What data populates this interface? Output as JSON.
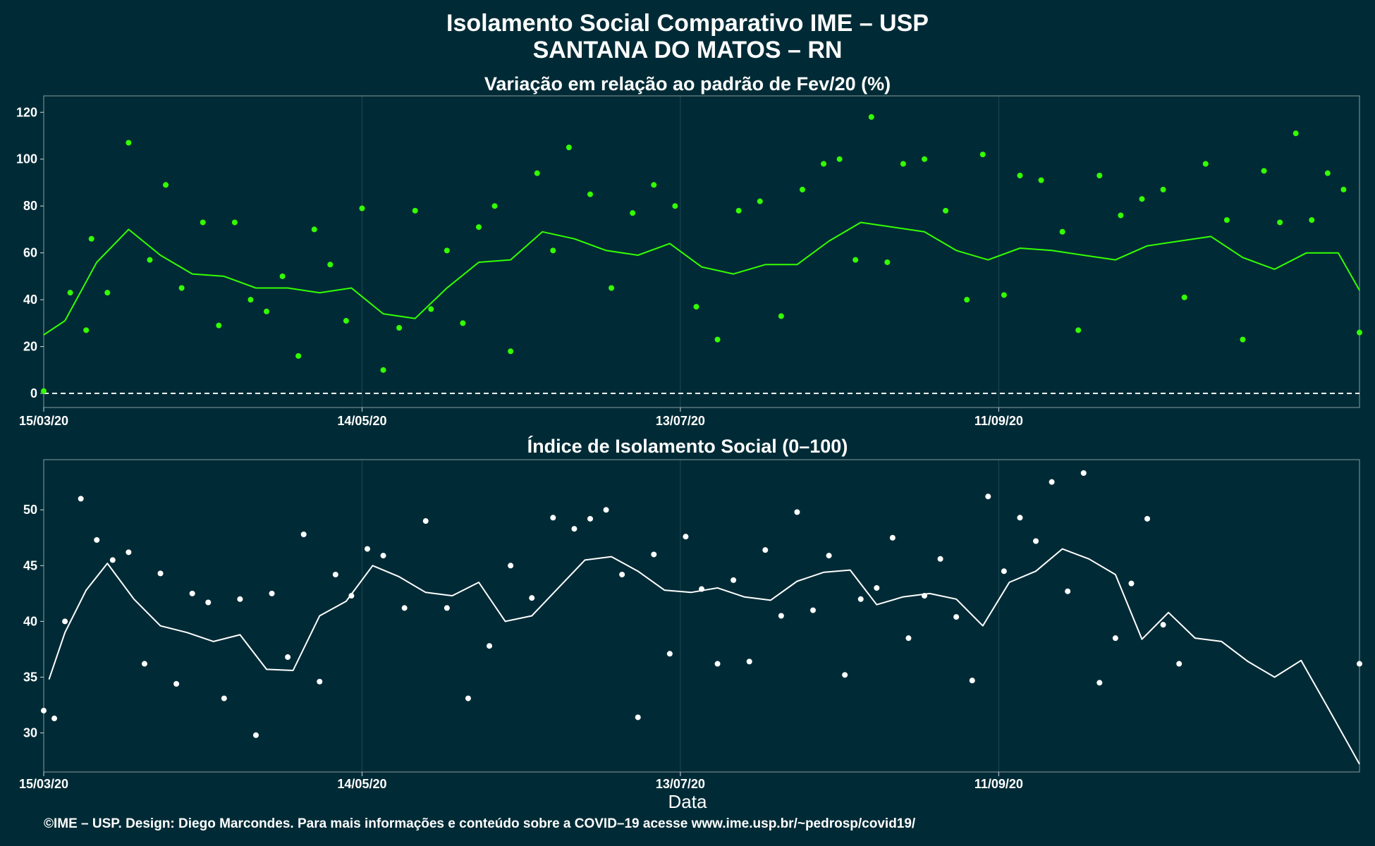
{
  "title_line1": "Isolamento Social Comparativo IME – USP",
  "title_line2": "SANTANA DO MATOS – RN",
  "x_axis_label": "Data",
  "footer": "©IME – USP. Design: Diego Marcondes. Para mais informações e conteúdo sobre a COVID–19 acesse www.ime.usp.br/~pedrosp/covid19/",
  "colors": {
    "background": "#002b36",
    "top_series": "#33ff00",
    "bottom_series": "#ffffff",
    "grid": "#23464f"
  },
  "chart_data": [
    {
      "type": "scatter",
      "title": "Variação em relação ao padrão de Fev/20 (%)",
      "xlabel": "",
      "ylabel": "",
      "x_start_date": "15/03/20",
      "x_end_date": "18/11/20",
      "x_ticks": [
        "15/03/20",
        "14/05/20",
        "13/07/20",
        "11/09/20"
      ],
      "y_ticks": [
        0,
        20,
        40,
        60,
        80,
        100,
        120
      ],
      "ylim": [
        -6,
        127
      ],
      "reference_line": 0,
      "points": [
        {
          "date": "15/03/20",
          "value": 1
        },
        {
          "date": "20/03/20",
          "value": 43
        },
        {
          "date": "23/03/20",
          "value": 27
        },
        {
          "date": "24/03/20",
          "value": 66
        },
        {
          "date": "27/03/20",
          "value": 43
        },
        {
          "date": "31/03/20",
          "value": 107
        },
        {
          "date": "04/04/20",
          "value": 57
        },
        {
          "date": "07/04/20",
          "value": 89
        },
        {
          "date": "10/04/20",
          "value": 45
        },
        {
          "date": "14/04/20",
          "value": 73
        },
        {
          "date": "17/04/20",
          "value": 29
        },
        {
          "date": "20/04/20",
          "value": 73
        },
        {
          "date": "23/04/20",
          "value": 40
        },
        {
          "date": "26/04/20",
          "value": 35
        },
        {
          "date": "29/04/20",
          "value": 50
        },
        {
          "date": "02/05/20",
          "value": 16
        },
        {
          "date": "05/05/20",
          "value": 70
        },
        {
          "date": "08/05/20",
          "value": 55
        },
        {
          "date": "11/05/20",
          "value": 31
        },
        {
          "date": "14/05/20",
          "value": 79
        },
        {
          "date": "18/05/20",
          "value": 10
        },
        {
          "date": "21/05/20",
          "value": 28
        },
        {
          "date": "24/05/20",
          "value": 78
        },
        {
          "date": "27/05/20",
          "value": 36
        },
        {
          "date": "30/05/20",
          "value": 61
        },
        {
          "date": "02/06/20",
          "value": 30
        },
        {
          "date": "05/06/20",
          "value": 71
        },
        {
          "date": "08/06/20",
          "value": 80
        },
        {
          "date": "11/06/20",
          "value": 18
        },
        {
          "date": "16/06/20",
          "value": 94
        },
        {
          "date": "19/06/20",
          "value": 61
        },
        {
          "date": "22/06/20",
          "value": 105
        },
        {
          "date": "26/06/20",
          "value": 85
        },
        {
          "date": "30/06/20",
          "value": 45
        },
        {
          "date": "04/07/20",
          "value": 77
        },
        {
          "date": "08/07/20",
          "value": 89
        },
        {
          "date": "12/07/20",
          "value": 80
        },
        {
          "date": "16/07/20",
          "value": 37
        },
        {
          "date": "20/07/20",
          "value": 23
        },
        {
          "date": "24/07/20",
          "value": 78
        },
        {
          "date": "28/07/20",
          "value": 82
        },
        {
          "date": "01/08/20",
          "value": 33
        },
        {
          "date": "05/08/20",
          "value": 87
        },
        {
          "date": "09/08/20",
          "value": 98
        },
        {
          "date": "12/08/20",
          "value": 100
        },
        {
          "date": "15/08/20",
          "value": 57
        },
        {
          "date": "18/08/20",
          "value": 118
        },
        {
          "date": "21/08/20",
          "value": 56
        },
        {
          "date": "24/08/20",
          "value": 98
        },
        {
          "date": "28/08/20",
          "value": 100
        },
        {
          "date": "01/09/20",
          "value": 78
        },
        {
          "date": "05/09/20",
          "value": 40
        },
        {
          "date": "08/09/20",
          "value": 102
        },
        {
          "date": "12/09/20",
          "value": 42
        },
        {
          "date": "15/09/20",
          "value": 93
        },
        {
          "date": "19/09/20",
          "value": 91
        },
        {
          "date": "23/09/20",
          "value": 69
        },
        {
          "date": "26/09/20",
          "value": 27
        },
        {
          "date": "30/09/20",
          "value": 93
        },
        {
          "date": "04/10/20",
          "value": 76
        },
        {
          "date": "08/10/20",
          "value": 83
        },
        {
          "date": "12/10/20",
          "value": 87
        },
        {
          "date": "16/10/20",
          "value": 41
        },
        {
          "date": "20/10/20",
          "value": 98
        },
        {
          "date": "24/10/20",
          "value": 74
        },
        {
          "date": "27/10/20",
          "value": 23
        },
        {
          "date": "31/10/20",
          "value": 95
        },
        {
          "date": "03/11/20",
          "value": 73
        },
        {
          "date": "06/11/20",
          "value": 111
        },
        {
          "date": "09/11/20",
          "value": 74
        },
        {
          "date": "12/11/20",
          "value": 94
        },
        {
          "date": "15/11/20",
          "value": 87
        },
        {
          "date": "18/11/20",
          "value": 26
        }
      ],
      "moving_average": [
        {
          "date": "15/03/20",
          "value": 25
        },
        {
          "date": "19/03/20",
          "value": 31
        },
        {
          "date": "25/03/20",
          "value": 56
        },
        {
          "date": "31/03/20",
          "value": 70
        },
        {
          "date": "06/04/20",
          "value": 59
        },
        {
          "date": "12/04/20",
          "value": 51
        },
        {
          "date": "18/04/20",
          "value": 50
        },
        {
          "date": "24/04/20",
          "value": 45
        },
        {
          "date": "30/04/20",
          "value": 45
        },
        {
          "date": "06/05/20",
          "value": 43
        },
        {
          "date": "12/05/20",
          "value": 45
        },
        {
          "date": "18/05/20",
          "value": 34
        },
        {
          "date": "24/05/20",
          "value": 32
        },
        {
          "date": "30/05/20",
          "value": 45
        },
        {
          "date": "05/06/20",
          "value": 56
        },
        {
          "date": "11/06/20",
          "value": 57
        },
        {
          "date": "17/06/20",
          "value": 69
        },
        {
          "date": "23/06/20",
          "value": 66
        },
        {
          "date": "29/06/20",
          "value": 61
        },
        {
          "date": "05/07/20",
          "value": 59
        },
        {
          "date": "11/07/20",
          "value": 64
        },
        {
          "date": "17/07/20",
          "value": 54
        },
        {
          "date": "23/07/20",
          "value": 51
        },
        {
          "date": "29/07/20",
          "value": 55
        },
        {
          "date": "04/08/20",
          "value": 55
        },
        {
          "date": "10/08/20",
          "value": 65
        },
        {
          "date": "16/08/20",
          "value": 73
        },
        {
          "date": "22/08/20",
          "value": 71
        },
        {
          "date": "28/08/20",
          "value": 69
        },
        {
          "date": "03/09/20",
          "value": 61
        },
        {
          "date": "09/09/20",
          "value": 57
        },
        {
          "date": "15/09/20",
          "value": 62
        },
        {
          "date": "21/09/20",
          "value": 61
        },
        {
          "date": "27/09/20",
          "value": 59
        },
        {
          "date": "03/10/20",
          "value": 57
        },
        {
          "date": "09/10/20",
          "value": 63
        },
        {
          "date": "15/10/20",
          "value": 65
        },
        {
          "date": "21/10/20",
          "value": 67
        },
        {
          "date": "27/10/20",
          "value": 58
        },
        {
          "date": "02/11/20",
          "value": 53
        },
        {
          "date": "08/11/20",
          "value": 60
        },
        {
          "date": "14/11/20",
          "value": 60
        },
        {
          "date": "18/11/20",
          "value": 44
        }
      ]
    },
    {
      "type": "scatter",
      "title": "Índice de Isolamento Social (0–100)",
      "xlabel": "Data",
      "ylabel": "",
      "x_start_date": "15/03/20",
      "x_end_date": "18/11/20",
      "x_ticks": [
        "15/03/20",
        "14/05/20",
        "13/07/20",
        "11/09/20"
      ],
      "y_ticks": [
        30,
        35,
        40,
        45,
        50
      ],
      "ylim": [
        26.5,
        54.5
      ],
      "points": [
        {
          "date": "15/03/20",
          "value": 32
        },
        {
          "date": "17/03/20",
          "value": 31.3
        },
        {
          "date": "19/03/20",
          "value": 40
        },
        {
          "date": "22/03/20",
          "value": 51
        },
        {
          "date": "25/03/20",
          "value": 47.3
        },
        {
          "date": "28/03/20",
          "value": 45.5
        },
        {
          "date": "31/03/20",
          "value": 46.2
        },
        {
          "date": "03/04/20",
          "value": 36.2
        },
        {
          "date": "06/04/20",
          "value": 44.3
        },
        {
          "date": "09/04/20",
          "value": 34.4
        },
        {
          "date": "12/04/20",
          "value": 42.5
        },
        {
          "date": "15/04/20",
          "value": 41.7
        },
        {
          "date": "18/04/20",
          "value": 33.1
        },
        {
          "date": "21/04/20",
          "value": 42
        },
        {
          "date": "24/04/20",
          "value": 29.8
        },
        {
          "date": "27/04/20",
          "value": 42.5
        },
        {
          "date": "30/04/20",
          "value": 36.8
        },
        {
          "date": "03/05/20",
          "value": 47.8
        },
        {
          "date": "06/05/20",
          "value": 34.6
        },
        {
          "date": "09/05/20",
          "value": 44.2
        },
        {
          "date": "12/05/20",
          "value": 42.3
        },
        {
          "date": "15/05/20",
          "value": 46.5
        },
        {
          "date": "18/05/20",
          "value": 45.9
        },
        {
          "date": "22/05/20",
          "value": 41.2
        },
        {
          "date": "26/05/20",
          "value": 49
        },
        {
          "date": "30/05/20",
          "value": 41.2
        },
        {
          "date": "03/06/20",
          "value": 33.1
        },
        {
          "date": "07/06/20",
          "value": 37.8
        },
        {
          "date": "11/06/20",
          "value": 45
        },
        {
          "date": "15/06/20",
          "value": 42.1
        },
        {
          "date": "19/06/20",
          "value": 49.3
        },
        {
          "date": "23/06/20",
          "value": 48.3
        },
        {
          "date": "26/06/20",
          "value": 49.2
        },
        {
          "date": "29/06/20",
          "value": 50
        },
        {
          "date": "02/07/20",
          "value": 44.2
        },
        {
          "date": "05/07/20",
          "value": 31.4
        },
        {
          "date": "08/07/20",
          "value": 46
        },
        {
          "date": "11/07/20",
          "value": 37.1
        },
        {
          "date": "14/07/20",
          "value": 47.6
        },
        {
          "date": "17/07/20",
          "value": 42.9
        },
        {
          "date": "20/07/20",
          "value": 36.2
        },
        {
          "date": "23/07/20",
          "value": 43.7
        },
        {
          "date": "26/07/20",
          "value": 36.4
        },
        {
          "date": "29/07/20",
          "value": 46.4
        },
        {
          "date": "01/08/20",
          "value": 40.5
        },
        {
          "date": "04/08/20",
          "value": 49.8
        },
        {
          "date": "07/08/20",
          "value": 41
        },
        {
          "date": "10/08/20",
          "value": 45.9
        },
        {
          "date": "13/08/20",
          "value": 35.2
        },
        {
          "date": "16/08/20",
          "value": 42
        },
        {
          "date": "19/08/20",
          "value": 43
        },
        {
          "date": "22/08/20",
          "value": 47.5
        },
        {
          "date": "25/08/20",
          "value": 38.5
        },
        {
          "date": "28/08/20",
          "value": 42.3
        },
        {
          "date": "31/08/20",
          "value": 45.6
        },
        {
          "date": "03/09/20",
          "value": 40.4
        },
        {
          "date": "06/09/20",
          "value": 34.7
        },
        {
          "date": "09/09/20",
          "value": 51.2
        },
        {
          "date": "12/09/20",
          "value": 44.5
        },
        {
          "date": "15/09/20",
          "value": 49.3
        },
        {
          "date": "18/09/20",
          "value": 47.2
        },
        {
          "date": "21/09/20",
          "value": 52.5
        },
        {
          "date": "24/09/20",
          "value": 42.7
        },
        {
          "date": "27/09/20",
          "value": 53.3
        },
        {
          "date": "30/09/20",
          "value": 34.5
        },
        {
          "date": "03/10/20",
          "value": 38.5
        },
        {
          "date": "06/10/20",
          "value": 43.4
        },
        {
          "date": "09/10/20",
          "value": 49.2
        },
        {
          "date": "12/10/20",
          "value": 39.7
        },
        {
          "date": "15/10/20",
          "value": 36.2
        },
        {
          "date": "18/11/20",
          "value": 36.2
        }
      ],
      "moving_average": [
        {
          "date": "16/03/20",
          "value": 34.8
        },
        {
          "date": "19/03/20",
          "value": 39
        },
        {
          "date": "23/03/20",
          "value": 42.8
        },
        {
          "date": "27/03/20",
          "value": 45.2
        },
        {
          "date": "01/04/20",
          "value": 42
        },
        {
          "date": "06/04/20",
          "value": 39.6
        },
        {
          "date": "11/04/20",
          "value": 39
        },
        {
          "date": "16/04/20",
          "value": 38.2
        },
        {
          "date": "21/04/20",
          "value": 38.8
        },
        {
          "date": "26/04/20",
          "value": 35.7
        },
        {
          "date": "01/05/20",
          "value": 35.6
        },
        {
          "date": "06/05/20",
          "value": 40.5
        },
        {
          "date": "11/05/20",
          "value": 41.8
        },
        {
          "date": "16/05/20",
          "value": 45
        },
        {
          "date": "21/05/20",
          "value": 44
        },
        {
          "date": "26/05/20",
          "value": 42.6
        },
        {
          "date": "31/05/20",
          "value": 42.3
        },
        {
          "date": "05/06/20",
          "value": 43.5
        },
        {
          "date": "10/06/20",
          "value": 40
        },
        {
          "date": "15/06/20",
          "value": 40.5
        },
        {
          "date": "20/06/20",
          "value": 43
        },
        {
          "date": "25/06/20",
          "value": 45.5
        },
        {
          "date": "30/06/20",
          "value": 45.8
        },
        {
          "date": "05/07/20",
          "value": 44.5
        },
        {
          "date": "10/07/20",
          "value": 42.8
        },
        {
          "date": "15/07/20",
          "value": 42.6
        },
        {
          "date": "20/07/20",
          "value": 43
        },
        {
          "date": "25/07/20",
          "value": 42.2
        },
        {
          "date": "30/07/20",
          "value": 41.9
        },
        {
          "date": "04/08/20",
          "value": 43.6
        },
        {
          "date": "09/08/20",
          "value": 44.4
        },
        {
          "date": "14/08/20",
          "value": 44.6
        },
        {
          "date": "19/08/20",
          "value": 41.5
        },
        {
          "date": "24/08/20",
          "value": 42.2
        },
        {
          "date": "29/08/20",
          "value": 42.5
        },
        {
          "date": "03/09/20",
          "value": 42
        },
        {
          "date": "08/09/20",
          "value": 39.6
        },
        {
          "date": "13/09/20",
          "value": 43.5
        },
        {
          "date": "18/09/20",
          "value": 44.5
        },
        {
          "date": "23/09/20",
          "value": 46.5
        },
        {
          "date": "28/09/20",
          "value": 45.6
        },
        {
          "date": "03/10/20",
          "value": 44.2
        },
        {
          "date": "08/10/20",
          "value": 38.4
        },
        {
          "date": "13/10/20",
          "value": 40.8
        },
        {
          "date": "18/10/20",
          "value": 38.5
        },
        {
          "date": "23/10/20",
          "value": 38.2
        },
        {
          "date": "28/10/20",
          "value": 36.4
        },
        {
          "date": "02/11/20",
          "value": 35
        },
        {
          "date": "07/11/20",
          "value": 36.5
        },
        {
          "date": "12/11/20",
          "value": 32.3
        },
        {
          "date": "18/11/20",
          "value": 27.2
        }
      ]
    }
  ]
}
